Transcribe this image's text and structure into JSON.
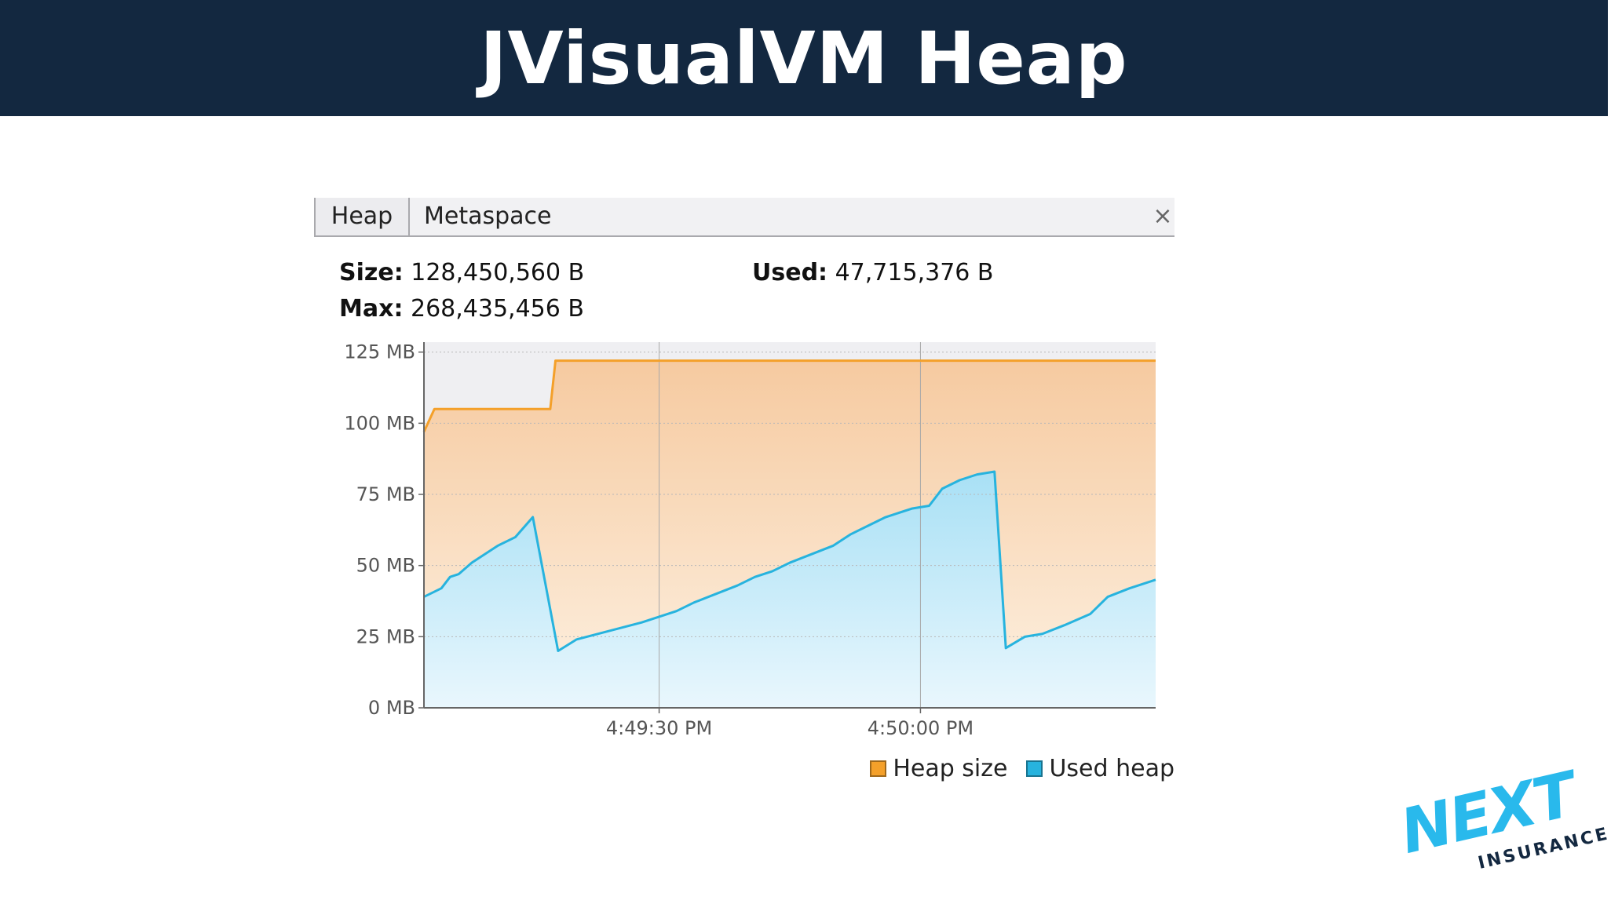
{
  "slide": {
    "title": "JVisualVM Heap"
  },
  "tabs": [
    {
      "label": "Heap"
    },
    {
      "label": "Metaspace"
    }
  ],
  "close_symbol": "×",
  "stats": {
    "size": {
      "label": "Size:",
      "value": "128,450,560 B"
    },
    "max": {
      "label": "Max:",
      "value": "268,435,456 B"
    },
    "used": {
      "label": "Used:",
      "value": "47,715,376 B"
    }
  },
  "chart_data": {
    "type": "area",
    "title": "",
    "xlabel": "",
    "ylabel": "",
    "ylim": [
      0,
      125
    ],
    "y_ticks": [
      0,
      25,
      50,
      75,
      100,
      125
    ],
    "y_tick_labels": [
      "0 MB",
      "25 MB",
      "50 MB",
      "75 MB",
      "100 MB",
      "125 MB"
    ],
    "xlim": [
      0,
      84
    ],
    "x_ticks": [
      27,
      57
    ],
    "x_tick_labels": [
      "4:49:30 PM",
      "4:50:00 PM"
    ],
    "grid": true,
    "legend_position": "bottom-right",
    "series": [
      {
        "name": "Heap size",
        "color": "#f4a02a",
        "fill_top": "#f6caa0",
        "fill_bottom": "#fdf1e2",
        "points": [
          [
            0,
            97
          ],
          [
            1.2,
            105
          ],
          [
            14.5,
            105
          ],
          [
            15.1,
            122
          ],
          [
            84,
            122
          ]
        ]
      },
      {
        "name": "Used heap",
        "color": "#27b3de",
        "fill_top": "#a8e0f5",
        "fill_bottom": "#e9f7fd",
        "points": [
          [
            0,
            39
          ],
          [
            2,
            42
          ],
          [
            3,
            46
          ],
          [
            4,
            47
          ],
          [
            5.5,
            51
          ],
          [
            7,
            54
          ],
          [
            8.5,
            57
          ],
          [
            10.5,
            60
          ],
          [
            12.5,
            67
          ],
          [
            15.4,
            20
          ],
          [
            17.5,
            24
          ],
          [
            20,
            26
          ],
          [
            22.5,
            28
          ],
          [
            25,
            30
          ],
          [
            27,
            32
          ],
          [
            29,
            34
          ],
          [
            31,
            37
          ],
          [
            33.5,
            40
          ],
          [
            36,
            43
          ],
          [
            38,
            46
          ],
          [
            40,
            48
          ],
          [
            42,
            51
          ],
          [
            44.5,
            54
          ],
          [
            47,
            57
          ],
          [
            49,
            61
          ],
          [
            51,
            64
          ],
          [
            53,
            67
          ],
          [
            56,
            70
          ],
          [
            58,
            71
          ],
          [
            59.5,
            77
          ],
          [
            61.5,
            80
          ],
          [
            63.5,
            82
          ],
          [
            65.5,
            83
          ],
          [
            66.8,
            21
          ],
          [
            69,
            25
          ],
          [
            71,
            26
          ],
          [
            73.5,
            29
          ],
          [
            76.5,
            33
          ],
          [
            78.5,
            39
          ],
          [
            81,
            42
          ],
          [
            84,
            45
          ]
        ]
      }
    ]
  },
  "logo": {
    "text": "NEXT",
    "subtext": "INSURANCE",
    "color": "#29b9ec"
  }
}
